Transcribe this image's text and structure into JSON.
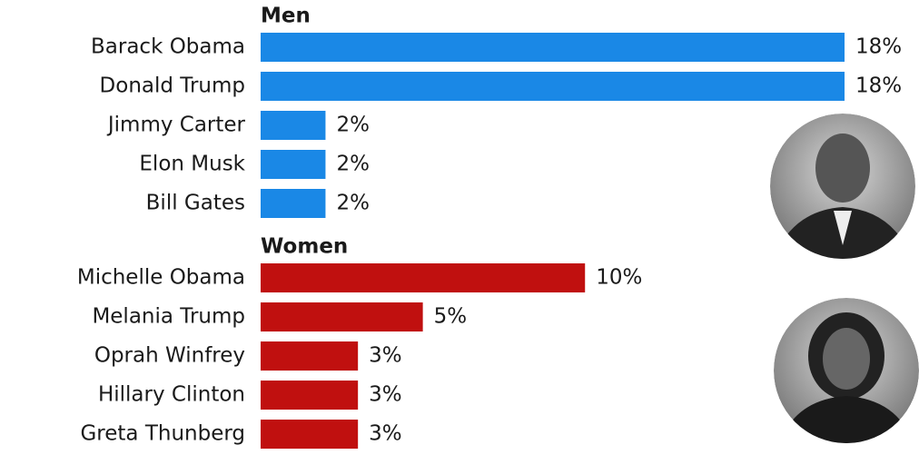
{
  "chart_data": [
    {
      "type": "bar",
      "title": "Men",
      "color": "#1a88e6",
      "categories": [
        "Barack Obama",
        "Donald Trump",
        "Jimmy Carter",
        "Elon Musk",
        "Bill Gates"
      ],
      "values": [
        18,
        18,
        2,
        2,
        2
      ],
      "value_labels": [
        "18%",
        "18%",
        "2%",
        "2%",
        "2%"
      ]
    },
    {
      "type": "bar",
      "title": "Women",
      "color": "#c0100f",
      "categories": [
        "Michelle Obama",
        "Melania Trump",
        "Oprah Winfrey",
        "Hillary Clinton",
        "Greta Thunberg"
      ],
      "values": [
        10,
        5,
        3,
        3,
        3
      ],
      "value_labels": [
        "10%",
        "5%",
        "3%",
        "3%",
        "3%"
      ]
    }
  ]
}
